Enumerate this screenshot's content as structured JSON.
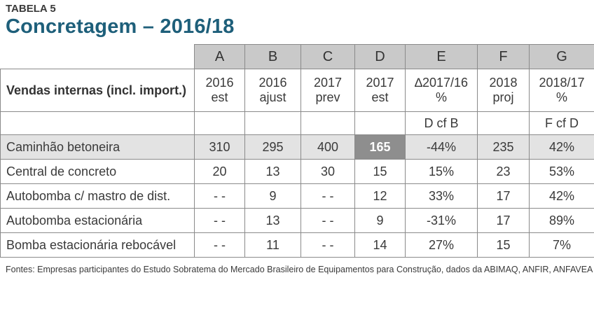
{
  "header": {
    "kicker": "TABELA 5",
    "title": "Concretagem – 2016/18"
  },
  "table": {
    "column_letters": [
      "A",
      "B",
      "C",
      "D",
      "E",
      "F",
      "G"
    ],
    "row_label": "Vendas internas (incl. import.)",
    "column_headers": [
      [
        "2016",
        "est"
      ],
      [
        "2016",
        "ajust"
      ],
      [
        "2017",
        "prev"
      ],
      [
        "2017",
        "est"
      ],
      [
        "∆2017/16",
        "%"
      ],
      [
        "2018",
        "proj"
      ],
      [
        "2018/17",
        "%"
      ]
    ],
    "reference_row": [
      "",
      "",
      "",
      "",
      "D cf B",
      "",
      "F cf D"
    ],
    "rows": [
      {
        "name": "Caminhão betoneira",
        "values": [
          "310",
          "295",
          "400",
          "165",
          "-44%",
          "235",
          "42%"
        ]
      },
      {
        "name": "Central de concreto",
        "values": [
          "20",
          "13",
          "30",
          "15",
          "15%",
          "23",
          "53%"
        ]
      },
      {
        "name": "Autobomba c/ mastro de dist.",
        "values": [
          "- -",
          "9",
          "- -",
          "12",
          "33%",
          "17",
          "42%"
        ]
      },
      {
        "name": "Autobomba estacionária",
        "values": [
          "- -",
          "13",
          "- -",
          "9",
          "-31%",
          "17",
          "89%"
        ]
      },
      {
        "name": "Bomba estacionária rebocável",
        "values": [
          "- -",
          "11",
          "- -",
          "14",
          "27%",
          "15",
          "7%"
        ]
      }
    ],
    "highlight_color": "#8e8e8e",
    "shade_color": "#e3e3e3",
    "letter_header_color": "#c9c9c9"
  },
  "footer": {
    "source": "Fontes: Empresas participantes do Estudo Sobratema do Mercado Brasileiro de Equipamentos para Construção, dados da ABIMAQ, ANFIR, ANFAVEA"
  },
  "colors": {
    "title": "#1e5f7a",
    "text": "#3a3a3a"
  }
}
